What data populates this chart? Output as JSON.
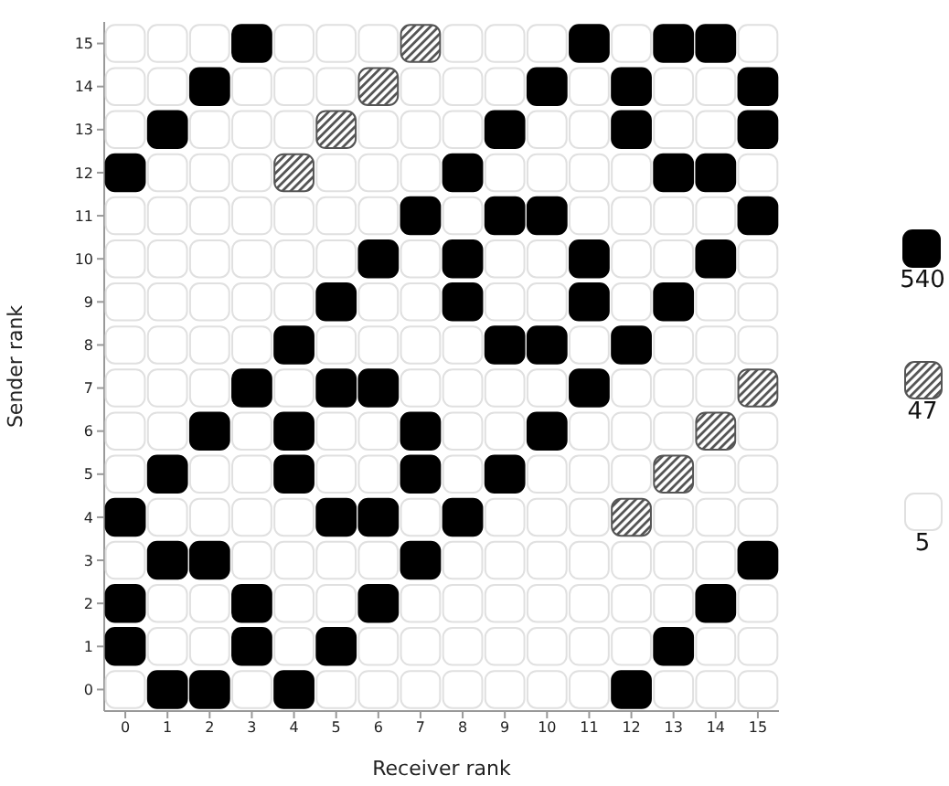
{
  "chart_data": {
    "type": "scatter",
    "xlabel": "Receiver rank",
    "ylabel": "Sender rank",
    "xlim": [
      -0.5,
      15.5
    ],
    "xticks": [
      0,
      1,
      2,
      3,
      4,
      5,
      6,
      7,
      8,
      9,
      10,
      11,
      12,
      13,
      14,
      15
    ],
    "ylim": [
      -0.5,
      15.5
    ],
    "yticks": [
      0,
      1,
      2,
      3,
      4,
      5,
      6,
      7,
      8,
      9,
      10,
      11,
      12,
      13,
      14,
      15
    ],
    "marker": "square",
    "legend": "right",
    "series": [
      {
        "name": "540",
        "color": "#000000",
        "x": [
          3,
          11,
          13,
          14,
          2,
          10,
          12,
          15,
          1,
          9,
          12,
          15,
          0,
          8,
          13,
          14,
          7,
          9,
          10,
          15,
          6,
          8,
          11,
          14,
          5,
          8,
          11,
          13,
          4,
          9,
          10,
          12,
          3,
          5,
          6,
          11,
          2,
          4,
          7,
          10,
          1,
          4,
          7,
          9,
          0,
          5,
          6,
          8,
          1,
          2,
          7,
          15,
          0,
          3,
          6,
          14,
          0,
          3,
          5,
          13,
          1,
          2,
          4,
          12
        ],
        "values": [
          15,
          15,
          15,
          15,
          14,
          14,
          14,
          14,
          13,
          13,
          13,
          13,
          12,
          12,
          12,
          12,
          11,
          11,
          11,
          11,
          10,
          10,
          10,
          10,
          9,
          9,
          9,
          9,
          8,
          8,
          8,
          8,
          7,
          7,
          7,
          7,
          6,
          6,
          6,
          6,
          5,
          5,
          5,
          5,
          4,
          4,
          4,
          4,
          3,
          3,
          3,
          3,
          2,
          2,
          2,
          2,
          1,
          1,
          1,
          1,
          0,
          0,
          0,
          0
        ]
      },
      {
        "name": "47",
        "color": "#555555",
        "x": [
          7,
          6,
          5,
          4,
          15,
          14,
          13,
          12
        ],
        "values": [
          15,
          14,
          13,
          12,
          7,
          6,
          5,
          4
        ]
      },
      {
        "name": "5",
        "color": "#ffffff",
        "x": [
          0,
          1,
          2,
          4,
          5,
          6,
          8,
          9,
          10,
          12,
          15,
          0,
          1,
          3,
          4,
          5,
          7,
          8,
          9,
          11,
          13,
          14,
          0,
          2,
          3,
          4,
          6,
          7,
          8,
          10,
          11,
          13,
          14,
          1,
          2,
          3,
          5,
          6,
          7,
          9,
          10,
          11,
          12,
          15,
          0,
          1,
          2,
          3,
          4,
          5,
          6,
          8,
          11,
          12,
          13,
          14,
          0,
          1,
          2,
          3,
          4,
          5,
          7,
          9,
          10,
          12,
          13,
          15,
          0,
          1,
          2,
          3,
          4,
          6,
          7,
          9,
          10,
          12,
          14,
          15,
          0,
          1,
          2,
          3,
          5,
          6,
          7,
          8,
          11,
          13,
          14,
          15,
          0,
          1,
          2,
          4,
          7,
          8,
          9,
          10,
          12,
          13,
          14,
          0,
          1,
          3,
          5,
          6,
          8,
          9,
          11,
          12,
          13,
          15,
          0,
          2,
          3,
          5,
          6,
          8,
          10,
          11,
          12,
          14,
          15,
          1,
          2,
          3,
          4,
          7,
          9,
          10,
          11,
          13,
          14,
          15,
          0,
          3,
          4,
          5,
          6,
          8,
          9,
          10,
          11,
          12,
          13,
          14,
          1,
          2,
          4,
          5,
          7,
          8,
          9,
          10,
          11,
          12,
          13,
          15,
          1,
          2,
          4,
          6,
          7,
          8,
          9,
          10,
          11,
          12,
          14,
          15,
          0,
          3,
          5,
          6,
          7,
          8,
          9,
          10,
          11,
          13,
          14,
          15
        ],
        "values": [
          15,
          15,
          15,
          15,
          15,
          15,
          15,
          15,
          15,
          15,
          15,
          14,
          14,
          14,
          14,
          14,
          14,
          14,
          14,
          14,
          14,
          14,
          13,
          13,
          13,
          13,
          13,
          13,
          13,
          13,
          13,
          13,
          13,
          12,
          12,
          12,
          12,
          12,
          12,
          12,
          12,
          12,
          12,
          12,
          11,
          11,
          11,
          11,
          11,
          11,
          11,
          11,
          11,
          11,
          11,
          11,
          10,
          10,
          10,
          10,
          10,
          10,
          10,
          10,
          10,
          10,
          10,
          10,
          9,
          9,
          9,
          9,
          9,
          9,
          9,
          9,
          9,
          9,
          9,
          9,
          8,
          8,
          8,
          8,
          8,
          8,
          8,
          8,
          8,
          8,
          8,
          8,
          7,
          7,
          7,
          7,
          7,
          7,
          7,
          7,
          7,
          7,
          7,
          6,
          6,
          6,
          6,
          6,
          6,
          6,
          6,
          6,
          6,
          6,
          5,
          5,
          5,
          5,
          5,
          5,
          5,
          5,
          5,
          5,
          5,
          4,
          4,
          4,
          4,
          4,
          4,
          4,
          4,
          4,
          4,
          4,
          3,
          3,
          3,
          3,
          3,
          3,
          3,
          3,
          3,
          3,
          3,
          3,
          2,
          2,
          2,
          2,
          2,
          2,
          2,
          2,
          2,
          2,
          2,
          2,
          1,
          1,
          1,
          1,
          1,
          1,
          1,
          1,
          1,
          1,
          1,
          1,
          0,
          0,
          0,
          0,
          0,
          0,
          0,
          0,
          0,
          0,
          0,
          0
        ]
      }
    ]
  }
}
